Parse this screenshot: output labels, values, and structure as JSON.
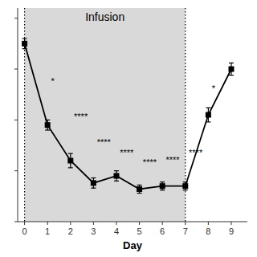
{
  "chart_data": {
    "type": "line",
    "title": "Infusion",
    "xlabel": "Day",
    "x": [
      0,
      1,
      2,
      3,
      4,
      5,
      6,
      7,
      8,
      9
    ],
    "values": [
      22.5,
      14.5,
      11.0,
      8.8,
      9.5,
      8.2,
      8.5,
      8.5,
      15.5,
      20.0
    ],
    "errors": [
      0.5,
      0.5,
      0.7,
      0.5,
      0.5,
      0.4,
      0.4,
      0.4,
      0.7,
      0.6
    ],
    "color": "#000000",
    "marker": "square",
    "span": [
      0,
      7
    ],
    "span_color": "#d9d9d9",
    "annotations": [
      {
        "x": 1.15,
        "y": 18.5,
        "text": "*"
      },
      {
        "x": 2.15,
        "y": 15.0,
        "text": "****"
      },
      {
        "x": 3.15,
        "y": 12.5,
        "text": "****"
      },
      {
        "x": 4.15,
        "y": 11.5,
        "text": "****"
      },
      {
        "x": 5.15,
        "y": 10.5,
        "text": "****"
      },
      {
        "x": 6.15,
        "y": 10.8,
        "text": "****"
      },
      {
        "x": 7.15,
        "y": 11.5,
        "text": "****"
      },
      {
        "x": 8.15,
        "y": 17.8,
        "text": "*"
      }
    ],
    "xlim": [
      -0.3,
      9.7
    ],
    "ylim": [
      5,
      26
    ],
    "xticks": [
      0,
      1,
      2,
      3,
      4,
      5,
      6,
      7,
      8,
      9
    ],
    "yticks": [
      5,
      10,
      15,
      20,
      25
    ],
    "tick_labels": "x",
    "grid": false
  }
}
